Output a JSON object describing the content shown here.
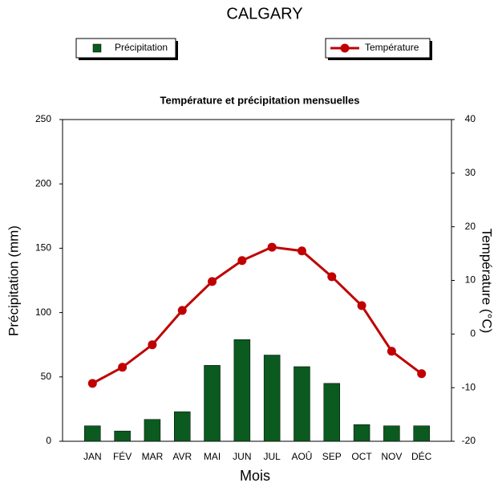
{
  "chart_data": {
    "type": "bar",
    "title": "CALGARY",
    "subtitle": "Température et précipitation mensuelles",
    "x_label": "Mois",
    "y_label": "Précipitation (mm)",
    "y2_label": "Température (°C)",
    "categories": [
      "JAN",
      "FÉV",
      "MAR",
      "AVR",
      "MAI",
      "JUN",
      "JUL",
      "AOÛ",
      "SEP",
      "OCT",
      "NOV",
      "DÉC"
    ],
    "series": [
      {
        "name": "Précipitation",
        "type": "bar",
        "color": "#0b5a1f",
        "values": [
          12,
          8,
          17,
          23,
          59,
          79,
          67,
          58,
          45,
          13,
          12,
          12
        ]
      },
      {
        "name": "Température",
        "type": "line",
        "axis": "y2",
        "color": "#c00000",
        "values": [
          -9.2,
          -6.2,
          -2,
          4.4,
          9.8,
          13.7,
          16.2,
          15.5,
          10.7,
          5.3,
          -3.2,
          -7.4
        ]
      }
    ],
    "ylim": [
      0,
      250
    ],
    "yticks": [
      0,
      50,
      100,
      150,
      200,
      250
    ],
    "y2lim": [
      -20,
      40
    ],
    "y2ticks": [
      -20,
      -10,
      0,
      10,
      20,
      30,
      40
    ]
  }
}
